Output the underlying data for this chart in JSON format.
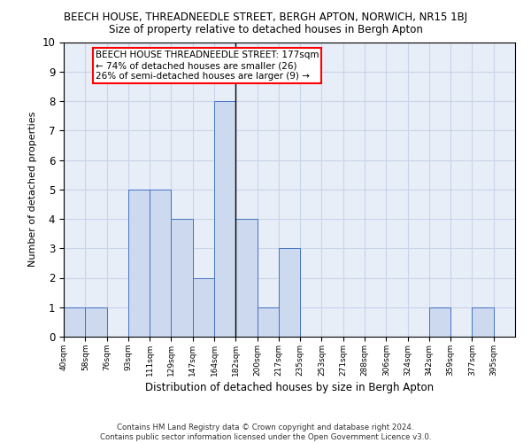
{
  "title_line1": "BEECH HOUSE, THREADNEEDLE STREET, BERGH APTON, NORWICH, NR15 1BJ",
  "title_line2": "Size of property relative to detached houses in Bergh Apton",
  "xlabel": "Distribution of detached houses by size in Bergh Apton",
  "ylabel": "Number of detached properties",
  "footnote": "Contains HM Land Registry data © Crown copyright and database right 2024.\nContains public sector information licensed under the Open Government Licence v3.0.",
  "bin_labels": [
    "40sqm",
    "58sqm",
    "76sqm",
    "93sqm",
    "111sqm",
    "129sqm",
    "147sqm",
    "164sqm",
    "182sqm",
    "200sqm",
    "217sqm",
    "235sqm",
    "253sqm",
    "271sqm",
    "288sqm",
    "306sqm",
    "324sqm",
    "342sqm",
    "359sqm",
    "377sqm",
    "395sqm"
  ],
  "bar_values": [
    1,
    1,
    0,
    5,
    5,
    4,
    2,
    8,
    4,
    1,
    3,
    0,
    0,
    0,
    0,
    0,
    0,
    1,
    0,
    1,
    0
  ],
  "bar_color": "#ccd9ee",
  "bar_edge_color": "#4472c4",
  "vline_x": 8,
  "annotation_text": "BEECH HOUSE THREADNEEDLE STREET: 177sqm\n← 74% of detached houses are smaller (26)\n26% of semi-detached houses are larger (9) →",
  "annotation_box_color": "#ffffff",
  "annotation_box_edge_color": "#ff0000",
  "vline_color": "#000000",
  "ylim": [
    0,
    10
  ],
  "yticks": [
    0,
    1,
    2,
    3,
    4,
    5,
    6,
    7,
    8,
    9,
    10
  ],
  "grid_color": "#c8d4e8",
  "background_color": "#e8eef8"
}
